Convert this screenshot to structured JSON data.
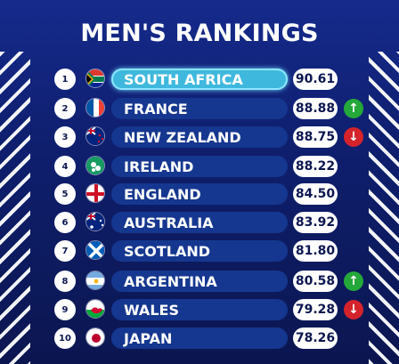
{
  "title": "MEN'S RANKINGS",
  "rankings": [
    {
      "rank": "1",
      "team": "SOUTH AFRICA",
      "points": "90.61",
      "flag_icon": "flag-south-africa-icon",
      "move": ""
    },
    {
      "rank": "2",
      "team": "FRANCE",
      "points": "88.88",
      "flag_icon": "flag-france-icon",
      "move": "up"
    },
    {
      "rank": "3",
      "team": "NEW ZEALAND",
      "points": "88.75",
      "flag_icon": "flag-new-zealand-icon",
      "move": "down"
    },
    {
      "rank": "4",
      "team": "IRELAND",
      "points": "88.22",
      "flag_icon": "flag-ireland-icon",
      "move": ""
    },
    {
      "rank": "5",
      "team": "ENGLAND",
      "points": "84.50",
      "flag_icon": "flag-england-icon",
      "move": ""
    },
    {
      "rank": "6",
      "team": "AUSTRALIA",
      "points": "83.92",
      "flag_icon": "flag-australia-icon",
      "move": ""
    },
    {
      "rank": "7",
      "team": "SCOTLAND",
      "points": "81.80",
      "flag_icon": "flag-scotland-icon",
      "move": ""
    },
    {
      "rank": "8",
      "team": "ARGENTINA",
      "points": "80.58",
      "flag_icon": "flag-argentina-icon",
      "move": "up"
    },
    {
      "rank": "9",
      "team": "WALES",
      "points": "79.28",
      "flag_icon": "flag-wales-icon",
      "move": "down"
    },
    {
      "rank": "10",
      "team": "JAPAN",
      "points": "78.26",
      "flag_icon": "flag-japan-icon",
      "move": ""
    }
  ],
  "colors": {
    "background": "#0f1f6e",
    "pill": "#15378f",
    "highlight": "#3fb8dd",
    "up": "#25a83a",
    "down": "#d4232b"
  }
}
